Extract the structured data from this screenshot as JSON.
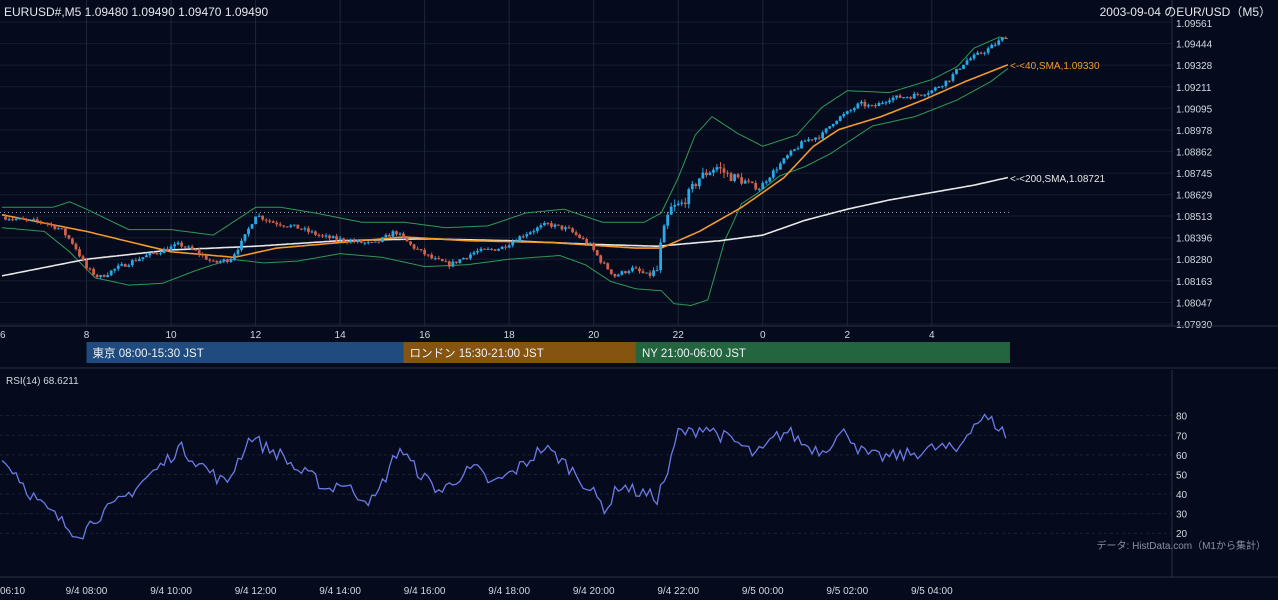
{
  "header": {
    "ohlc_text": "EURUSD#,M5 1.09480 1.09490 1.09470 1.09490",
    "title_right": "2003-09-04 のEUR/USD（M5）"
  },
  "chart_data": {
    "type": "candlestick",
    "price_axis": {
      "ticks": [
        "1.09561",
        "1.09444",
        "1.09328",
        "1.09211",
        "1.09095",
        "1.08978",
        "1.08862",
        "1.08745",
        "1.08629",
        "1.08513",
        "1.08396",
        "1.08280",
        "1.08163",
        "1.08047",
        "1.07930"
      ],
      "range": [
        1.0793,
        1.09561
      ]
    },
    "hour_axis": {
      "ticks": [
        "6",
        "8",
        "10",
        "12",
        "14",
        "16",
        "18",
        "20",
        "22",
        "0",
        "2",
        "4"
      ]
    },
    "time_axis": {
      "ticks": [
        "06:10",
        "9/4 08:00",
        "9/4 10:00",
        "9/4 12:00",
        "9/4 14:00",
        "9/4 16:00",
        "9/4 18:00",
        "9/4 20:00",
        "9/4 22:00",
        "9/5 00:00",
        "9/5 02:00",
        "9/5 04:00"
      ]
    },
    "reference_line": 1.08533,
    "sma_labels": {
      "sma40": "<-<40,SMA,1.09330",
      "sma200": "<-<200,SMA,1.08721"
    },
    "sma40_knots": [
      [
        6.0,
        1.0852
      ],
      [
        8.0,
        1.0843
      ],
      [
        10.0,
        1.0832
      ],
      [
        11.5,
        1.0829
      ],
      [
        12.5,
        1.0834
      ],
      [
        14.0,
        1.0837
      ],
      [
        15.5,
        1.084
      ],
      [
        17.0,
        1.0838
      ],
      [
        19.0,
        1.0837
      ],
      [
        21.0,
        1.0834
      ],
      [
        21.6,
        1.0834
      ],
      [
        22.5,
        1.0843
      ],
      [
        23.5,
        1.0856
      ],
      [
        24.5,
        1.0872
      ],
      [
        25.2,
        1.0889
      ],
      [
        25.8,
        1.0898
      ],
      [
        26.8,
        1.0905
      ],
      [
        27.8,
        1.0914
      ],
      [
        28.8,
        1.0924
      ],
      [
        29.8,
        1.0933
      ]
    ],
    "sma200_knots": [
      [
        6.0,
        1.0819
      ],
      [
        8.0,
        1.0828
      ],
      [
        10.0,
        1.0833
      ],
      [
        12.0,
        1.0835
      ],
      [
        14.0,
        1.0838
      ],
      [
        16.0,
        1.0839
      ],
      [
        18.0,
        1.0838
      ],
      [
        20.0,
        1.0836
      ],
      [
        21.5,
        1.0835
      ],
      [
        23.0,
        1.0838
      ],
      [
        24.0,
        1.0841
      ],
      [
        25.0,
        1.0849
      ],
      [
        26.0,
        1.0855
      ],
      [
        27.0,
        1.086
      ],
      [
        28.0,
        1.0864
      ],
      [
        29.0,
        1.0868
      ],
      [
        29.8,
        1.08721
      ]
    ],
    "bb_upper_knots": [
      [
        6.0,
        1.0856
      ],
      [
        7.2,
        1.0856
      ],
      [
        7.6,
        1.0859
      ],
      [
        8.0,
        1.0855
      ],
      [
        9.0,
        1.0844
      ],
      [
        10.0,
        1.0844
      ],
      [
        11.0,
        1.0841
      ],
      [
        11.6,
        1.085
      ],
      [
        12.0,
        1.0856
      ],
      [
        12.6,
        1.0856
      ],
      [
        13.4,
        1.0853
      ],
      [
        14.5,
        1.0848
      ],
      [
        15.5,
        1.0848
      ],
      [
        16.5,
        1.0845
      ],
      [
        17.5,
        1.0846
      ],
      [
        18.4,
        1.0853
      ],
      [
        19.3,
        1.0855
      ],
      [
        20.2,
        1.0848
      ],
      [
        21.2,
        1.0848
      ],
      [
        21.6,
        1.0853
      ],
      [
        22.0,
        1.0872
      ],
      [
        22.4,
        1.0895
      ],
      [
        22.8,
        1.0905
      ],
      [
        23.4,
        1.0896
      ],
      [
        24.0,
        1.0889
      ],
      [
        24.8,
        1.0895
      ],
      [
        25.4,
        1.091
      ],
      [
        26.0,
        1.0919
      ],
      [
        27.0,
        1.0918
      ],
      [
        28.0,
        1.0925
      ],
      [
        28.6,
        1.0932
      ],
      [
        29.0,
        1.0942
      ],
      [
        29.6,
        1.0948
      ],
      [
        29.8,
        1.0947
      ]
    ],
    "bb_lower_knots": [
      [
        6.0,
        1.0845
      ],
      [
        7.0,
        1.0843
      ],
      [
        7.6,
        1.0832
      ],
      [
        8.2,
        1.0818
      ],
      [
        9.0,
        1.0814
      ],
      [
        9.8,
        1.0815
      ],
      [
        10.6,
        1.0822
      ],
      [
        11.4,
        1.0828
      ],
      [
        12.2,
        1.0826
      ],
      [
        13.0,
        1.0827
      ],
      [
        14.0,
        1.0831
      ],
      [
        15.0,
        1.0829
      ],
      [
        16.0,
        1.0824
      ],
      [
        17.0,
        1.0825
      ],
      [
        18.0,
        1.0828
      ],
      [
        19.2,
        1.083
      ],
      [
        19.8,
        1.0825
      ],
      [
        20.4,
        1.0816
      ],
      [
        21.0,
        1.0812
      ],
      [
        21.6,
        1.0811
      ],
      [
        21.9,
        1.0804
      ],
      [
        22.3,
        1.0803
      ],
      [
        22.7,
        1.0806
      ],
      [
        23.1,
        1.0838
      ],
      [
        23.5,
        1.0858
      ],
      [
        23.9,
        1.0864
      ],
      [
        24.4,
        1.0873
      ],
      [
        25.0,
        1.0878
      ],
      [
        25.6,
        1.0885
      ],
      [
        26.6,
        1.09
      ],
      [
        27.6,
        1.0905
      ],
      [
        28.6,
        1.0914
      ],
      [
        29.4,
        1.0924
      ],
      [
        29.8,
        1.0931
      ]
    ],
    "close_knots": [
      [
        6.0,
        1.0851
      ],
      [
        6.5,
        1.0849
      ],
      [
        7.0,
        1.0848
      ],
      [
        7.4,
        1.0844
      ],
      [
        7.7,
        1.0836
      ],
      [
        8.0,
        1.0823
      ],
      [
        8.3,
        1.0818
      ],
      [
        8.7,
        1.0823
      ],
      [
        9.2,
        1.0828
      ],
      [
        9.7,
        1.0832
      ],
      [
        10.2,
        1.0836
      ],
      [
        10.6,
        1.0832
      ],
      [
        11.0,
        1.0826
      ],
      [
        11.4,
        1.0828
      ],
      [
        11.7,
        1.0838
      ],
      [
        12.0,
        1.0852
      ],
      [
        12.4,
        1.0848
      ],
      [
        13.0,
        1.0845
      ],
      [
        13.6,
        1.084
      ],
      [
        14.2,
        1.0838
      ],
      [
        14.8,
        1.0836
      ],
      [
        15.3,
        1.0843
      ],
      [
        15.7,
        1.0835
      ],
      [
        16.2,
        1.0828
      ],
      [
        16.6,
        1.0825
      ],
      [
        17.2,
        1.0832
      ],
      [
        17.8,
        1.0834
      ],
      [
        18.4,
        1.0842
      ],
      [
        18.9,
        1.0847
      ],
      [
        19.4,
        1.0844
      ],
      [
        19.9,
        1.0836
      ],
      [
        20.2,
        1.0826
      ],
      [
        20.5,
        1.0819
      ],
      [
        20.9,
        1.0823
      ],
      [
        21.3,
        1.0819
      ],
      [
        21.5,
        1.0822
      ],
      [
        21.6,
        1.0838
      ],
      [
        21.8,
        1.0855
      ],
      [
        22.1,
        1.0858
      ],
      [
        22.5,
        1.0872
      ],
      [
        22.9,
        1.0878
      ],
      [
        23.2,
        1.0873
      ],
      [
        23.6,
        1.087
      ],
      [
        23.9,
        1.0866
      ],
      [
        24.2,
        1.0874
      ],
      [
        24.6,
        1.0884
      ],
      [
        25.0,
        1.0892
      ],
      [
        25.4,
        1.0895
      ],
      [
        25.7,
        1.0903
      ],
      [
        26.0,
        1.0907
      ],
      [
        26.3,
        1.0912
      ],
      [
        26.6,
        1.091
      ],
      [
        27.0,
        1.0915
      ],
      [
        27.5,
        1.0916
      ],
      [
        28.0,
        1.0919
      ],
      [
        28.4,
        1.0925
      ],
      [
        28.8,
        1.0935
      ],
      [
        29.3,
        1.0941
      ],
      [
        29.8,
        1.0949
      ]
    ],
    "rsi": {
      "label": "RSI(14) 68.6211",
      "ticks": [
        "80",
        "70",
        "60",
        "50",
        "40",
        "30",
        "20"
      ],
      "range": [
        14,
        88
      ],
      "knots": [
        [
          6.0,
          57
        ],
        [
          6.3,
          52
        ],
        [
          6.6,
          42
        ],
        [
          7.0,
          33
        ],
        [
          7.3,
          28
        ],
        [
          7.6,
          22
        ],
        [
          7.9,
          20
        ],
        [
          8.2,
          28
        ],
        [
          8.6,
          33
        ],
        [
          9.0,
          40
        ],
        [
          9.4,
          48
        ],
        [
          9.8,
          55
        ],
        [
          10.2,
          64
        ],
        [
          10.6,
          57
        ],
        [
          11.0,
          50
        ],
        [
          11.3,
          45
        ],
        [
          11.6,
          58
        ],
        [
          11.9,
          70
        ],
        [
          12.2,
          64
        ],
        [
          12.6,
          60
        ],
        [
          13.0,
          52
        ],
        [
          13.4,
          48
        ],
        [
          13.7,
          42
        ],
        [
          14.0,
          46
        ],
        [
          14.4,
          40
        ],
        [
          14.8,
          36
        ],
        [
          15.1,
          50
        ],
        [
          15.4,
          64
        ],
        [
          15.7,
          55
        ],
        [
          16.0,
          48
        ],
        [
          16.4,
          41
        ],
        [
          16.8,
          49
        ],
        [
          17.2,
          53
        ],
        [
          17.6,
          45
        ],
        [
          18.0,
          50
        ],
        [
          18.4,
          56
        ],
        [
          18.8,
          64
        ],
        [
          19.2,
          58
        ],
        [
          19.6,
          50
        ],
        [
          20.0,
          40
        ],
        [
          20.3,
          32
        ],
        [
          20.6,
          45
        ],
        [
          20.9,
          42
        ],
        [
          21.2,
          40
        ],
        [
          21.5,
          38
        ],
        [
          21.8,
          54
        ],
        [
          22.0,
          72
        ],
        [
          22.3,
          71
        ],
        [
          22.6,
          75
        ],
        [
          23.0,
          70
        ],
        [
          23.4,
          66
        ],
        [
          23.8,
          60
        ],
        [
          24.0,
          62
        ],
        [
          24.3,
          69
        ],
        [
          24.6,
          72
        ],
        [
          25.0,
          65
        ],
        [
          25.4,
          62
        ],
        [
          25.7,
          68
        ],
        [
          26.0,
          72
        ],
        [
          26.3,
          62
        ],
        [
          26.6,
          59
        ],
        [
          27.0,
          59
        ],
        [
          27.4,
          60
        ],
        [
          27.8,
          62
        ],
        [
          28.2,
          64
        ],
        [
          28.6,
          62
        ],
        [
          28.9,
          74
        ],
        [
          29.2,
          79
        ],
        [
          29.5,
          76
        ],
        [
          29.8,
          69
        ]
      ]
    }
  },
  "sessions": [
    {
      "label": "東京 08:00-15:30 JST",
      "color": "#1f4b7e"
    },
    {
      "label": "ロンドン 15:30-21:00 JST",
      "color": "#855410"
    },
    {
      "label": "NY 21:00-06:00 JST",
      "color": "#23653e"
    }
  ],
  "colors": {
    "up_candle": "#29a9e6",
    "down_candle": "#d2604b",
    "sma40": "#f39a2c",
    "sma200": "#e8e8e8",
    "bollinger": "#2f9a55",
    "rsi_line": "#6c7ae6"
  },
  "footer": {
    "credit": "データ: HistData.com（M1から集計）"
  }
}
